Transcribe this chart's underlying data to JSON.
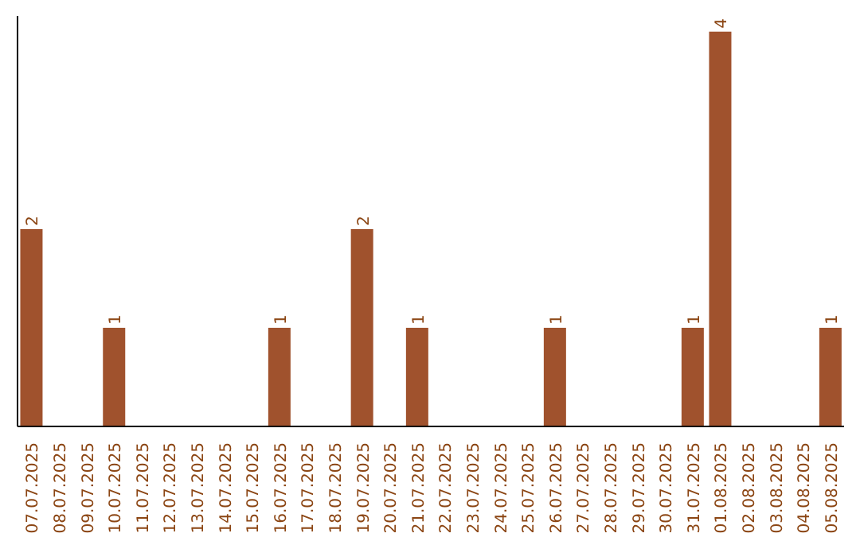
{
  "chart_data": {
    "type": "bar",
    "categories": [
      "07.07.2025",
      "08.07.2025",
      "09.07.2025",
      "10.07.2025",
      "11.07.2025",
      "12.07.2025",
      "13.07.2025",
      "14.07.2025",
      "15.07.2025",
      "16.07.2025",
      "17.07.2025",
      "18.07.2025",
      "19.07.2025",
      "20.07.2025",
      "21.07.2025",
      "22.07.2025",
      "23.07.2025",
      "24.07.2025",
      "25.07.2025",
      "26.07.2025",
      "27.07.2025",
      "28.07.2025",
      "29.07.2025",
      "30.07.2025",
      "31.07.2025",
      "01.08.2025",
      "02.08.2025",
      "03.08.2025",
      "04.08.2025",
      "05.08.2025"
    ],
    "values": [
      2,
      0,
      0,
      1,
      0,
      0,
      0,
      0,
      0,
      1,
      0,
      0,
      2,
      0,
      1,
      0,
      0,
      0,
      0,
      1,
      0,
      0,
      0,
      0,
      1,
      4,
      0,
      0,
      0,
      1
    ],
    "value_labels": [
      "2",
      null,
      null,
      "1",
      null,
      null,
      null,
      null,
      null,
      "1",
      null,
      null,
      "2",
      null,
      "1",
      null,
      null,
      null,
      null,
      "1",
      null,
      null,
      null,
      null,
      "1",
      "4",
      null,
      null,
      null,
      "1"
    ],
    "color": "#a0522d",
    "grid": false,
    "legend": false
  }
}
